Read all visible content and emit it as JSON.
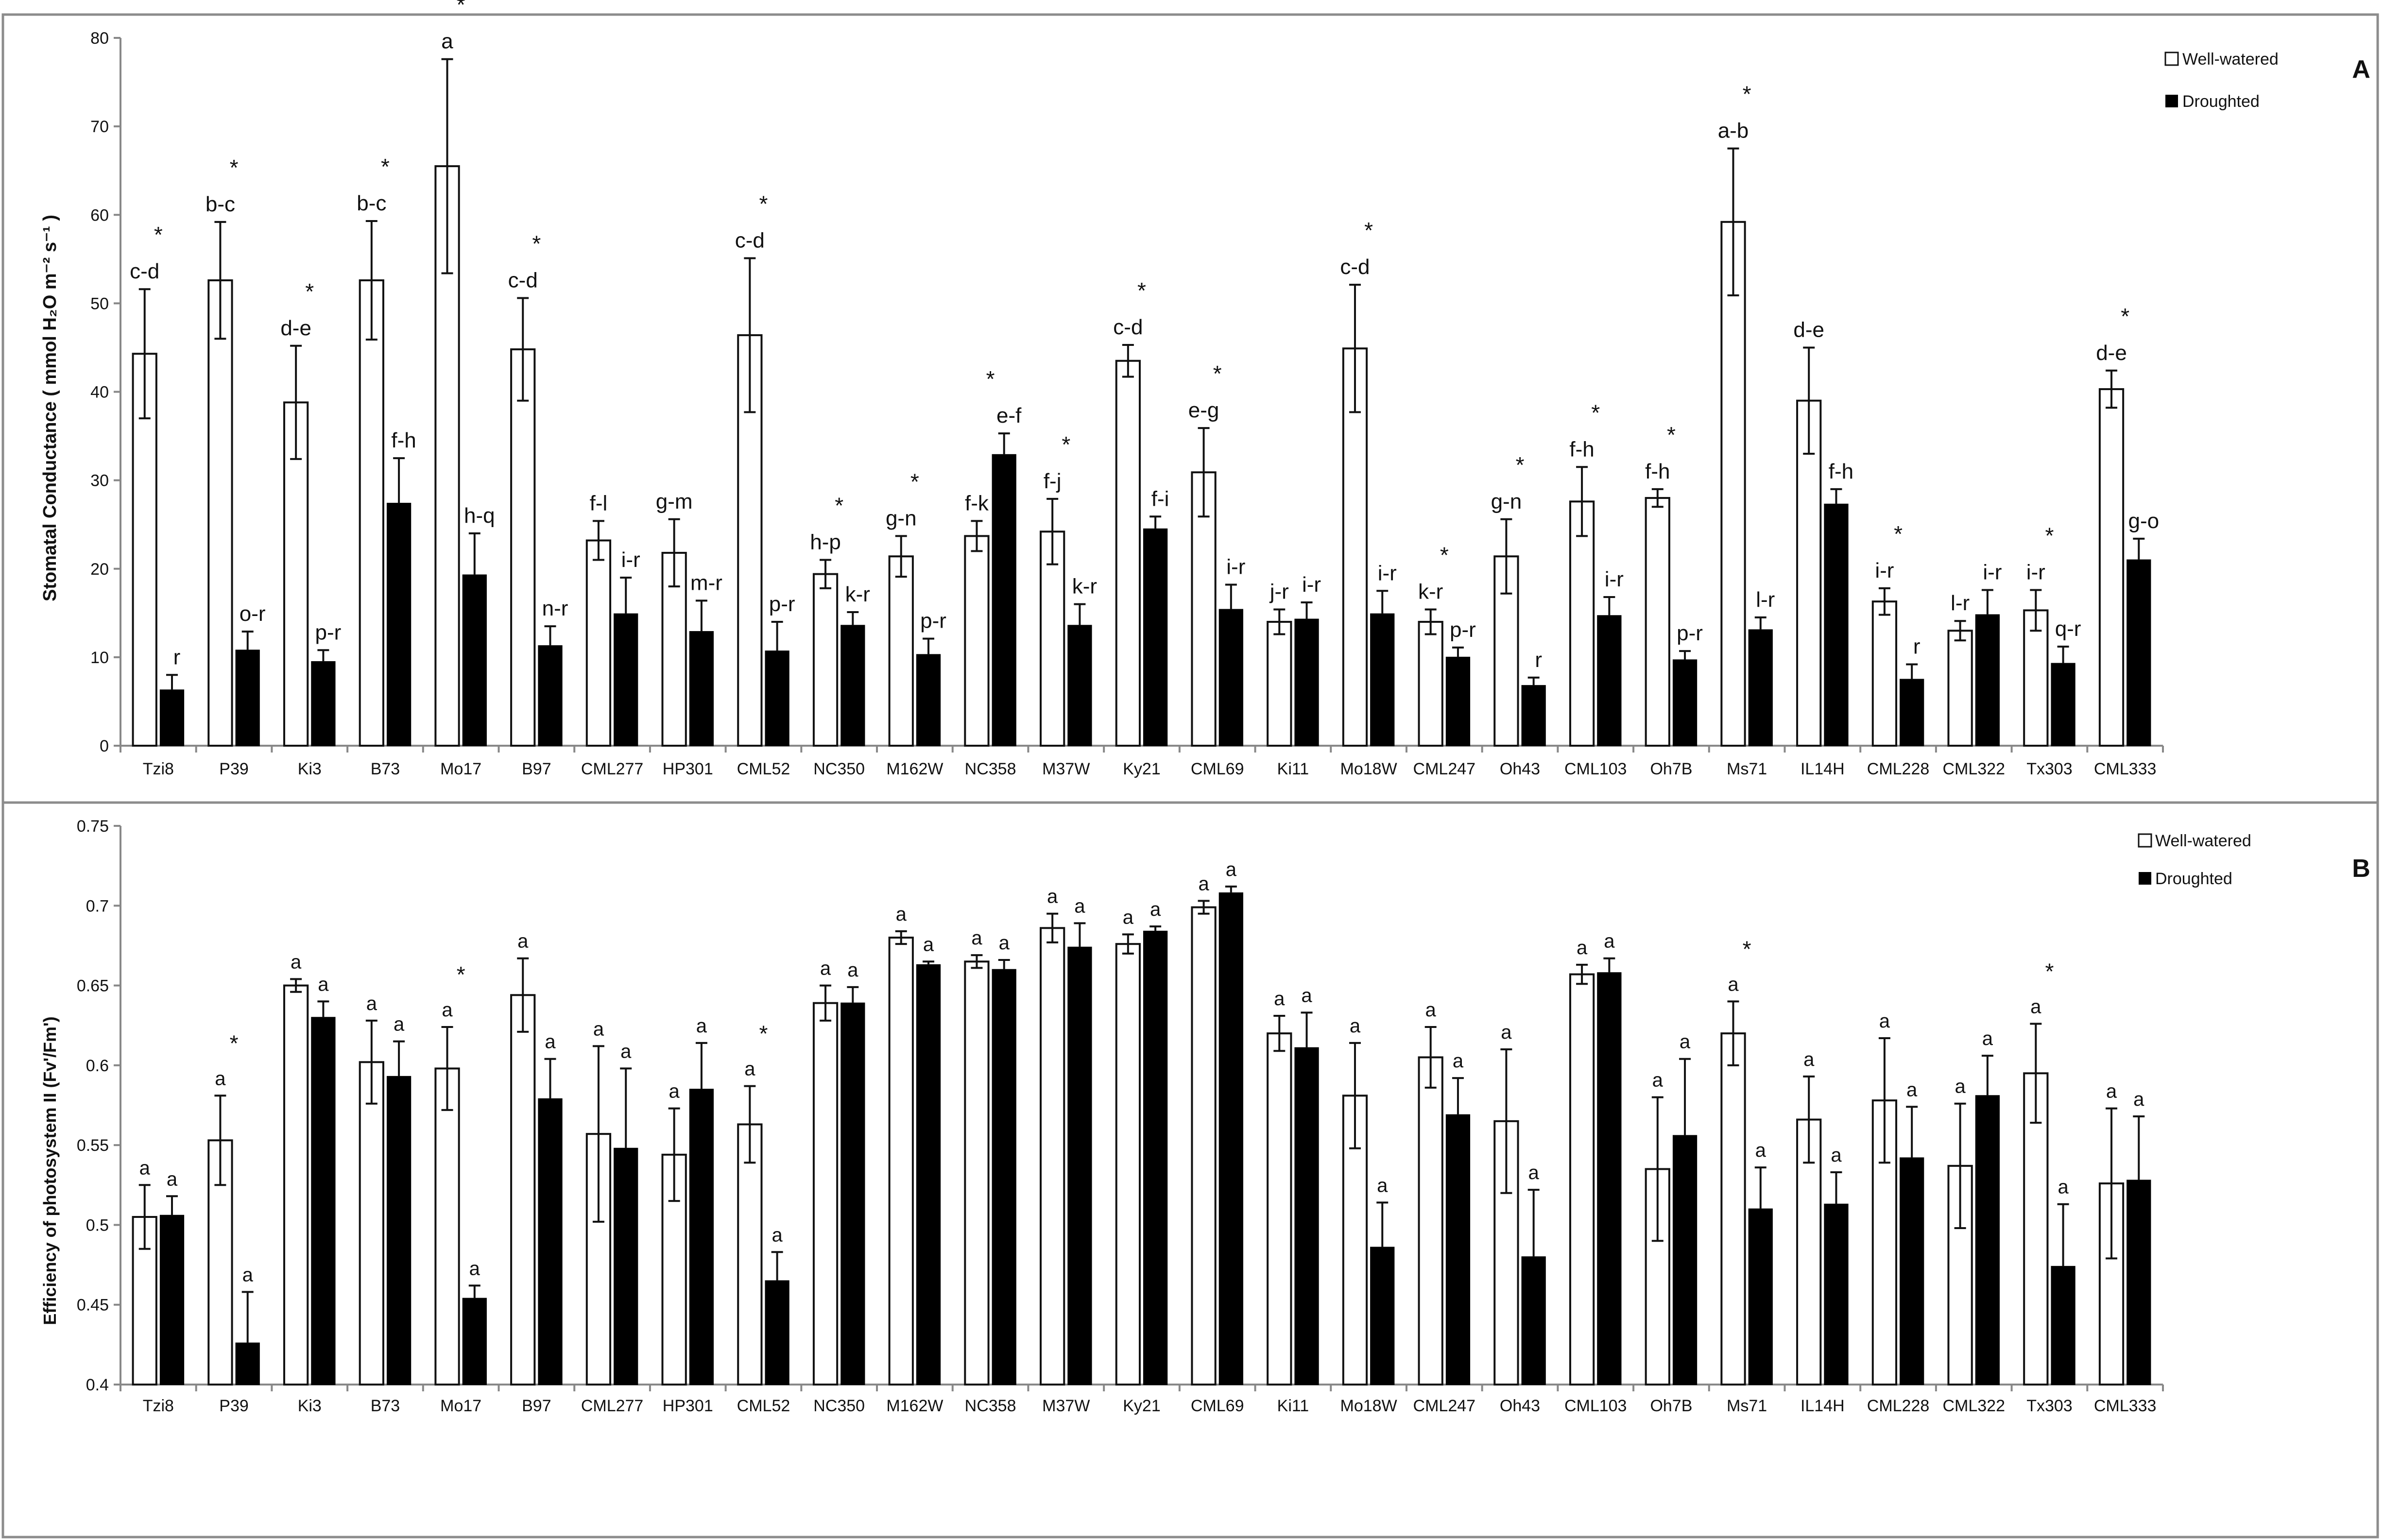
{
  "chart_data": [
    {
      "type": "bar",
      "panel_label": "A",
      "ylabel": "Stomatal Conductance ( mmol H₂O m⁻² s⁻¹ )",
      "ylim": [
        0,
        80
      ],
      "yticks": [
        0,
        10,
        20,
        30,
        40,
        50,
        60,
        70,
        80
      ],
      "legend_position": "top-right",
      "categories": [
        "Tzi8",
        "P39",
        "Ki3",
        "B73",
        "Mo17",
        "B97",
        "CML277",
        "HP301",
        "CML52",
        "NC350",
        "M162W",
        "NC358",
        "M37W",
        "Ky21",
        "CML69",
        "Ki11",
        "Mo18W",
        "CML247",
        "Oh43",
        "CML103",
        "Oh7B",
        "Ms71",
        "IL14H",
        "CML228",
        "CML322",
        "Tx303",
        "CML333"
      ],
      "series": [
        {
          "name": "Well-watered",
          "values": [
            44.3,
            52.6,
            38.8,
            52.6,
            65.5,
            44.8,
            23.2,
            21.8,
            46.4,
            19.4,
            21.4,
            23.7,
            24.2,
            43.5,
            30.9,
            14.0,
            44.9,
            14.0,
            21.4,
            27.6,
            28.0,
            59.2,
            39.0,
            16.3,
            13.0,
            15.3,
            40.3
          ],
          "errors": [
            7.3,
            6.6,
            6.4,
            6.7,
            12.1,
            5.8,
            2.2,
            3.8,
            8.7,
            1.6,
            2.3,
            1.7,
            3.7,
            1.8,
            5.0,
            1.4,
            7.2,
            1.4,
            4.2,
            3.9,
            1.0,
            8.3,
            6.0,
            1.5,
            1.1,
            2.3,
            2.1
          ],
          "letters": [
            "c-d",
            "b-c",
            "d-e",
            "b-c",
            "a",
            "c-d",
            "f-l",
            "g-m",
            "c-d",
            "h-p",
            "g-n",
            "f-k",
            "f-j",
            "c-d",
            "e-g",
            "j-r",
            "c-d",
            "k-r",
            "g-n",
            "f-h",
            "f-h",
            "a-b",
            "d-e",
            "i-r",
            "l-r",
            "i-r",
            "d-e"
          ]
        },
        {
          "name": "Droughted",
          "values": [
            6.3,
            10.8,
            9.5,
            27.4,
            19.3,
            11.3,
            14.9,
            12.9,
            10.7,
            13.6,
            10.3,
            32.9,
            13.6,
            24.5,
            15.4,
            14.3,
            14.9,
            10.0,
            6.8,
            14.7,
            9.7,
            13.1,
            27.3,
            7.5,
            14.8,
            9.3,
            21.0
          ],
          "errors": [
            1.7,
            2.1,
            1.3,
            5.1,
            4.7,
            2.2,
            4.1,
            3.5,
            3.3,
            1.5,
            1.8,
            2.4,
            2.4,
            1.4,
            2.8,
            1.9,
            2.6,
            1.1,
            0.9,
            2.1,
            1.0,
            1.4,
            1.7,
            1.7,
            2.8,
            1.9,
            2.4
          ],
          "letters": [
            "r",
            "o-r",
            "p-r",
            "f-h",
            "h-q",
            "n-r",
            "i-r",
            "m-r",
            "p-r",
            "k-r",
            "p-r",
            "e-f",
            "k-r",
            "f-i",
            "i-r",
            "i-r",
            "i-r",
            "p-r",
            "r",
            "i-r",
            "p-r",
            "l-r",
            "f-h",
            "r",
            "i-r",
            "q-r",
            "g-o"
          ]
        }
      ],
      "significant": [
        true,
        true,
        true,
        true,
        true,
        true,
        false,
        false,
        true,
        true,
        true,
        true,
        true,
        true,
        true,
        false,
        true,
        true,
        true,
        true,
        true,
        true,
        false,
        true,
        false,
        true,
        true
      ],
      "significance_mark": "*"
    },
    {
      "type": "bar",
      "panel_label": "B",
      "ylabel": "Efficiency of photosystem II (Fv'/Fm')",
      "ylim": [
        0.4,
        0.75
      ],
      "yticks": [
        0.4,
        0.45,
        0.5,
        0.55,
        0.6,
        0.65,
        0.7,
        0.75
      ],
      "legend_position": "top-right",
      "categories": [
        "Tzi8",
        "P39",
        "Ki3",
        "B73",
        "Mo17",
        "B97",
        "CML277",
        "HP301",
        "CML52",
        "NC350",
        "M162W",
        "NC358",
        "M37W",
        "Ky21",
        "CML69",
        "Ki11",
        "Mo18W",
        "CML247",
        "Oh43",
        "CML103",
        "Oh7B",
        "Ms71",
        "IL14H",
        "CML228",
        "CML322",
        "Tx303",
        "CML333"
      ],
      "series": [
        {
          "name": "Well-watered",
          "values": [
            0.505,
            0.553,
            0.65,
            0.602,
            0.598,
            0.644,
            0.557,
            0.544,
            0.563,
            0.639,
            0.68,
            0.665,
            0.686,
            0.676,
            0.699,
            0.62,
            0.581,
            0.605,
            0.565,
            0.657,
            0.535,
            0.62,
            0.566,
            0.578,
            0.537,
            0.595,
            0.526
          ],
          "errors": [
            0.02,
            0.028,
            0.004,
            0.026,
            0.026,
            0.023,
            0.055,
            0.029,
            0.024,
            0.011,
            0.004,
            0.004,
            0.009,
            0.006,
            0.004,
            0.011,
            0.033,
            0.019,
            0.045,
            0.006,
            0.045,
            0.02,
            0.027,
            0.039,
            0.039,
            0.031,
            0.047
          ],
          "letters": [
            "a",
            "a",
            "a",
            "a",
            "a",
            "a",
            "a",
            "a",
            "a",
            "a",
            "a",
            "a",
            "a",
            "a",
            "a",
            "a",
            "a",
            "a",
            "a",
            "a",
            "a",
            "a",
            "a",
            "a",
            "a",
            "a",
            "a"
          ]
        },
        {
          "name": "Droughted",
          "values": [
            0.506,
            0.426,
            0.63,
            0.593,
            0.454,
            0.579,
            0.548,
            0.585,
            0.465,
            0.639,
            0.663,
            0.66,
            0.674,
            0.684,
            0.708,
            0.611,
            0.486,
            0.569,
            0.48,
            0.658,
            0.556,
            0.51,
            0.513,
            0.542,
            0.581,
            0.474,
            0.528
          ],
          "errors": [
            0.012,
            0.032,
            0.01,
            0.022,
            0.008,
            0.025,
            0.05,
            0.029,
            0.018,
            0.01,
            0.002,
            0.006,
            0.015,
            0.003,
            0.004,
            0.022,
            0.028,
            0.023,
            0.042,
            0.009,
            0.048,
            0.026,
            0.02,
            0.032,
            0.025,
            0.039,
            0.04
          ],
          "letters": [
            "a",
            "a",
            "a",
            "a",
            "a",
            "a",
            "a",
            "a",
            "a",
            "a",
            "a",
            "a",
            "a",
            "a",
            "a",
            "a",
            "a",
            "a",
            "a",
            "a",
            "a",
            "a",
            "a",
            "a",
            "a",
            "a",
            "a"
          ]
        }
      ],
      "significant": [
        false,
        true,
        false,
        false,
        true,
        false,
        false,
        false,
        true,
        false,
        false,
        false,
        false,
        false,
        false,
        false,
        false,
        false,
        false,
        false,
        false,
        true,
        false,
        false,
        false,
        true,
        false
      ],
      "significance_mark": "*"
    }
  ]
}
